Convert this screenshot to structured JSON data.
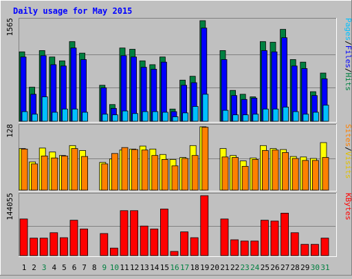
{
  "chart_data": {
    "type": "bar",
    "title": "Daily usage for May 2015",
    "x": [
      "1",
      "2",
      "3",
      "4",
      "5",
      "6",
      "7",
      "8",
      "9",
      "10",
      "11",
      "12",
      "13",
      "14",
      "15",
      "16",
      "17",
      "18",
      "19",
      "20",
      "21",
      "22",
      "23",
      "24",
      "25",
      "26",
      "27",
      "28",
      "29",
      "30",
      "31"
    ],
    "weekend_days": [
      "3",
      "9",
      "10",
      "16",
      "17",
      "23",
      "24",
      "30",
      "31"
    ],
    "panels": [
      {
        "id": "hits",
        "max_label": "1565",
        "ymax": 1565,
        "labels": [
          {
            "text": "Hits",
            "color": "#008040"
          },
          {
            "text": "/",
            "color": "#000000"
          },
          {
            "text": "Files",
            "color": "#0000ff"
          },
          {
            "text": "/",
            "color": "#000000"
          },
          {
            "text": "Pages",
            "color": "#00c0ff"
          }
        ],
        "series": [
          {
            "name": "Hits",
            "color": "#008040",
            "values": [
              1080,
              530,
              1100,
              1000,
              940,
              1240,
              1060,
              0,
              560,
              260,
              1140,
              1120,
              940,
              880,
              1000,
              190,
              640,
              700,
              1565,
              0,
              1100,
              480,
              420,
              380,
              1240,
              1230,
              1430,
              960,
              920,
              460,
              750
            ]
          },
          {
            "name": "Files",
            "color": "#0000ff",
            "values": [
              1000,
              420,
              1020,
              880,
              860,
              1140,
              960,
              0,
              520,
              200,
              1020,
              1000,
              840,
              810,
              920,
              150,
              560,
              600,
              1450,
              0,
              960,
              400,
              340,
              360,
              1100,
              1080,
              1300,
              860,
              820,
              400,
              660
            ]
          },
          {
            "name": "Pages",
            "color": "#00c0ff",
            "values": [
              150,
              110,
              380,
              140,
              190,
              190,
              140,
              0,
              110,
              100,
              160,
              120,
              150,
              150,
              140,
              70,
              130,
              230,
              420,
              0,
              170,
              100,
              100,
              110,
              190,
              190,
              220,
              150,
              110,
              140,
              250
            ]
          }
        ]
      },
      {
        "id": "visits",
        "max_label": "128",
        "ymax": 128,
        "labels": [
          {
            "text": "Visits",
            "color": "#e0c000"
          },
          {
            "text": "/",
            "color": "#000000"
          },
          {
            "text": "Sites",
            "color": "#ff8000"
          }
        ],
        "series": [
          {
            "name": "Visits",
            "color": "#ffff00",
            "values": [
              84,
              57,
              85,
              77,
              70,
              90,
              80,
              0,
              56,
              63,
              81,
              83,
              89,
              83,
              72,
              62,
              66,
              90,
              128,
              0,
              84,
              70,
              59,
              65,
              90,
              84,
              82,
              68,
              67,
              64,
              96
            ]
          },
          {
            "name": "Sites",
            "color": "#ff8000",
            "values": [
              83,
              53,
              69,
              65,
              69,
              84,
              68,
              0,
              53,
              74,
              86,
              82,
              81,
              70,
              62,
              49,
              64,
              70,
              127,
              0,
              67,
              66,
              48,
              62,
              80,
              81,
              76,
              64,
              60,
              60,
              66
            ]
          }
        ]
      },
      {
        "id": "kbytes",
        "max_label": "144055",
        "ymax": 144055,
        "labels": [
          {
            "text": "KBytes",
            "color": "#ff0000"
          }
        ],
        "series": [
          {
            "name": "KBytes",
            "color": "#ff0000",
            "values": [
              88000,
              42000,
              42000,
              55000,
              43000,
              85000,
              64000,
              0,
              53000,
              18000,
              108000,
              108000,
              71000,
              64000,
              112000,
              10000,
              57000,
              43000,
              144055,
              0,
              88000,
              38000,
              35000,
              35000,
              85000,
              83000,
              102000,
              55000,
              27000,
              27000,
              42000
            ]
          }
        ]
      }
    ]
  }
}
